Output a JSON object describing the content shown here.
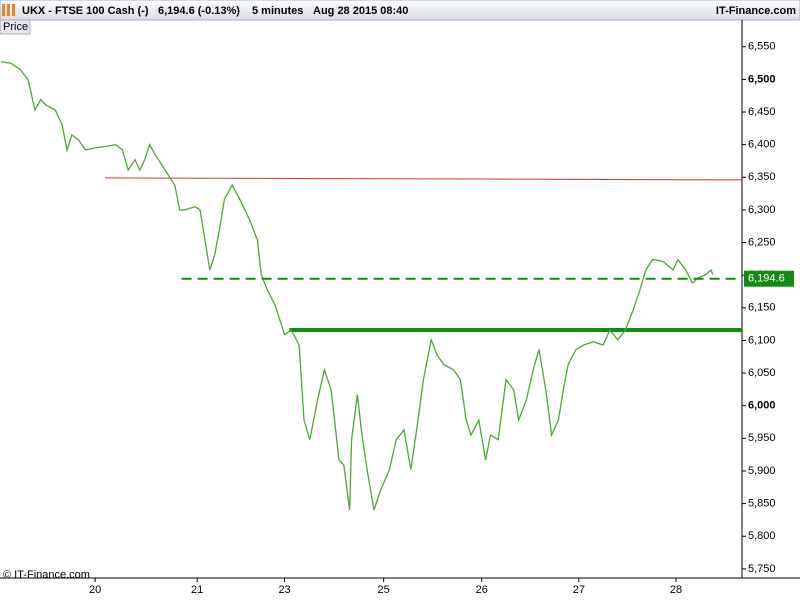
{
  "header": {
    "symbol": "UKX - FTSE 100 Cash (-)",
    "quote": "6,194.6 (-0.13%)",
    "interval": "5 minutes",
    "datetime": "Aug 28 2015 08:40",
    "source": "IT-Finance.com"
  },
  "panel_label": "Price",
  "copyright": "© IT-Finance.com",
  "chart_data": {
    "type": "line",
    "x": [
      -0.97,
      -0.87,
      -0.77,
      -0.69,
      -0.62,
      -0.56,
      -0.51,
      -0.41,
      -0.34,
      -0.29,
      -0.24,
      -0.17,
      -0.1,
      0,
      0.1,
      0.21,
      0.28,
      0.34,
      0.41,
      0.46,
      0.51,
      0.56,
      0.62,
      0.72,
      0.82,
      0.87,
      0.92,
      1.03,
      1.08,
      1.13,
      1.18,
      1.23,
      1.28,
      1.33,
      1.41,
      1.49,
      1.59,
      1.67,
      1.71,
      1.77,
      1.85,
      1.9,
      1.95,
      2.02,
      2.1,
      2.15,
      2.21,
      2.29,
      2.36,
      2.43,
      2.51,
      2.56,
      2.62,
      2.64,
      2.7,
      2.74,
      2.8,
      2.87,
      2.94,
      3.03,
      3.1,
      3.18,
      3.25,
      3.31,
      3.38,
      3.46,
      3.52,
      3.59,
      3.69,
      3.76,
      3.82,
      3.87,
      3.95,
      4.02,
      4.07,
      4.15,
      4.23,
      4.31,
      4.36,
      4.44,
      4.51,
      4.57,
      4.64,
      4.7,
      4.77,
      4.82,
      4.87,
      4.95,
      5.03,
      5.13,
      5.23,
      5.3,
      5.38,
      5.46,
      5.54,
      5.61,
      5.67,
      5.74,
      5.85,
      5.95,
      6.0,
      6.08,
      6.15,
      6.21,
      6.29,
      6.34,
      6.36
    ],
    "series": [
      {
        "name": "Price",
        "color": "#4da832",
        "values": [
          6527,
          6525,
          6515,
          6499,
          6453,
          6469,
          6461,
          6453,
          6430,
          6392,
          6415,
          6407,
          6392,
          6395,
          6397,
          6400,
          6392,
          6361,
          6377,
          6361,
          6377,
          6400,
          6384,
          6361,
          6338,
          6300,
          6300,
          6305,
          6300,
          6254,
          6208,
          6231,
          6270,
          6316,
          6338,
          6316,
          6285,
          6254,
          6201,
          6178,
          6155,
          6132,
          6109,
          6116,
          6093,
          5978,
          5948,
          6009,
          6055,
          6024,
          5917,
          5909,
          5840,
          5948,
          6017,
          5963,
          5902,
          5840,
          5871,
          5902,
          5948,
          5963,
          5902,
          5963,
          6040,
          6101,
          6078,
          6063,
          6055,
          6040,
          5978,
          5955,
          5978,
          5917,
          5955,
          5948,
          6040,
          6024,
          5978,
          6009,
          6055,
          6086,
          6024,
          5955,
          5978,
          6024,
          6063,
          6086,
          6093,
          6098,
          6093,
          6116,
          6101,
          6116,
          6147,
          6178,
          6208,
          6224,
          6221,
          6208,
          6224,
          6208,
          6188,
          6196,
          6201,
          6208,
          6201
        ]
      }
    ],
    "xlim": [
      -0.98,
      6.66
    ],
    "xticks": [
      {
        "value": 0,
        "label": "20"
      },
      {
        "value": 1.05,
        "label": "21"
      },
      {
        "value": 1.95,
        "label": "23"
      },
      {
        "value": 2.97,
        "label": "25"
      },
      {
        "value": 3.98,
        "label": "26"
      },
      {
        "value": 4.98,
        "label": "27"
      },
      {
        "value": 5.98,
        "label": "28"
      }
    ],
    "ylim": [
      5736,
      6591
    ],
    "yticks": [
      {
        "value": 5750,
        "label": "5,750"
      },
      {
        "value": 5800,
        "label": "5,800"
      },
      {
        "value": 5850,
        "label": "5,850"
      },
      {
        "value": 5900,
        "label": "5,900"
      },
      {
        "value": 5950,
        "label": "5,950"
      },
      {
        "value": 6000,
        "label": "6,000"
      },
      {
        "value": 6050,
        "label": "6,050"
      },
      {
        "value": 6100,
        "label": "6,100"
      },
      {
        "value": 6150,
        "label": "6,150"
      },
      {
        "value": 6200,
        "label": "6,200"
      },
      {
        "value": 6250,
        "label": "6,250"
      },
      {
        "value": 6300,
        "label": "6,300"
      },
      {
        "value": 6350,
        "label": "6,350"
      },
      {
        "value": 6400,
        "label": "6,400"
      },
      {
        "value": 6450,
        "label": "6,450"
      },
      {
        "value": 6500,
        "label": "6,500"
      },
      {
        "value": 6550,
        "label": "6,550"
      }
    ],
    "lines": [
      {
        "x": [
          0.1,
          6.66
        ],
        "values": [
          6349,
          6346
        ],
        "color": "#e0303a",
        "width": 1,
        "dashed": false
      },
      {
        "x": [
          2.0,
          6.66
        ],
        "values": [
          6116,
          6116
        ],
        "color": "#138a13",
        "width": 4,
        "dashed": false
      }
    ],
    "price_line": {
      "x": 0.89,
      "value": 6194.6,
      "label": "6,194.6",
      "color": "#138a13"
    },
    "grid": false
  }
}
